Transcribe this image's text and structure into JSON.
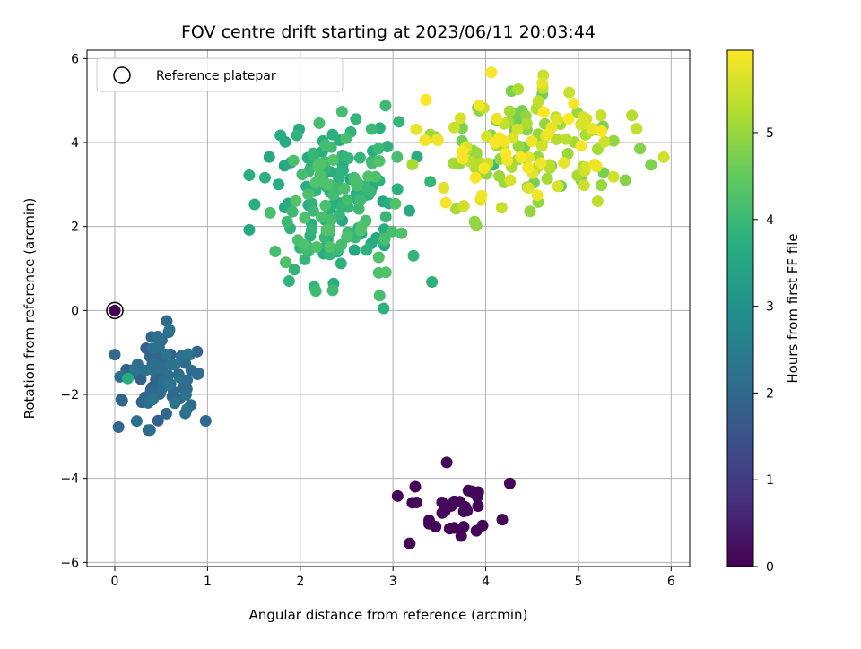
{
  "chart_data": {
    "type": "scatter",
    "title": "FOV centre drift starting at 2023/06/11 20:03:44",
    "xlabel": "Angular distance from reference (arcmin)",
    "ylabel": "Rotation from reference (arcmin)",
    "xlim": [
      -0.3,
      6.2
    ],
    "ylim": [
      -6.1,
      6.2
    ],
    "xticks": [
      0,
      1,
      2,
      3,
      4,
      5,
      6
    ],
    "yticks": [
      -6,
      -4,
      -2,
      0,
      2,
      4,
      6
    ],
    "grid": true,
    "legend": {
      "position": "top-left",
      "entries": [
        "Reference platepar"
      ]
    },
    "reference_point": {
      "x": 0,
      "y": 0
    },
    "colorbar": {
      "label": "Hours from first FF file",
      "range": [
        0,
        5.95
      ],
      "ticks": [
        0,
        1,
        2,
        3,
        4,
        5
      ],
      "colormap": "viridis"
    },
    "clusters": [
      {
        "hours_range": [
          0.0,
          0.15
        ],
        "x_range": [
          3.05,
          4.3
        ],
        "y_range": [
          -5.6,
          -3.6
        ],
        "count": 22
      },
      {
        "hours_range": [
          1.8,
          2.3
        ],
        "x_range": [
          0.0,
          1.0
        ],
        "y_range": [
          -2.9,
          -0.25
        ],
        "count": 75
      },
      {
        "hours_range": [
          3.5,
          4.3
        ],
        "x_range": [
          1.45,
          3.45
        ],
        "y_range": [
          0.05,
          4.9
        ],
        "count": 180
      },
      {
        "hours_range": [
          4.6,
          5.95
        ],
        "x_range": [
          2.9,
          5.95
        ],
        "y_range": [
          2.0,
          5.7
        ],
        "count": 150
      }
    ],
    "series": [
      {
        "x": [
          0.0
        ],
        "y": [
          0.0
        ],
        "hours": [
          0.02
        ]
      },
      {
        "x": [
          3.18,
          3.18,
          3.66,
          3.66,
          3.39,
          3.05,
          3.46,
          3.24,
          3.58,
          3.66,
          4.26,
          3.21,
          3.39
        ],
        "y": [
          -5.55,
          -5.55,
          -5.18,
          -5.18,
          -5.0,
          -4.42,
          -5.15,
          -4.2,
          -3.62,
          -4.55,
          -4.12,
          -4.58,
          -5.08
        ],
        "hours": [
          0.05,
          0.05,
          0.06,
          0.06,
          0.07,
          0.04,
          0.08,
          0.05,
          0.1,
          0.09,
          0.1,
          0.06,
          0.07
        ]
      },
      {
        "x": [
          0.56,
          0.58,
          0.04,
          0.08,
          0.36,
          0.38,
          0.76,
          0.98,
          0.89,
          0.82,
          0.62
        ],
        "y": [
          -0.25,
          -0.52,
          -2.78,
          -2.15,
          -2.85,
          -2.85,
          -2.45,
          -2.63,
          -1.52,
          -2.25,
          -2.05
        ],
        "hours": [
          2.05,
          2.1,
          2.0,
          1.95,
          2.05,
          2.05,
          2.1,
          2.0,
          2.0,
          2.05,
          2.0
        ]
      },
      {
        "x": [
          0.14,
          1.45,
          2.6,
          2.92,
          4.08,
          2.9,
          1.88,
          3.42,
          2.15
        ],
        "y": [
          -1.62,
          3.22,
          4.56,
          4.88,
          3.47,
          0.05,
          0.7,
          0.68,
          0.56
        ],
        "hours": [
          3.6,
          3.75,
          3.9,
          4.0,
          4.0,
          3.8,
          3.85,
          3.8,
          3.85
        ]
      },
      {
        "x": [
          4.06,
          4.35,
          4.95,
          5.15,
          5.25,
          5.92,
          5.05,
          4.78,
          3.9,
          3.88
        ],
        "y": [
          5.67,
          5.27,
          4.93,
          4.33,
          4.27,
          3.65,
          3.42,
          2.96,
          2.02,
          2.12
        ],
        "hours": [
          5.9,
          5.2,
          5.85,
          5.75,
          5.9,
          5.5,
          5.2,
          5.6,
          4.9,
          4.95
        ]
      }
    ]
  }
}
